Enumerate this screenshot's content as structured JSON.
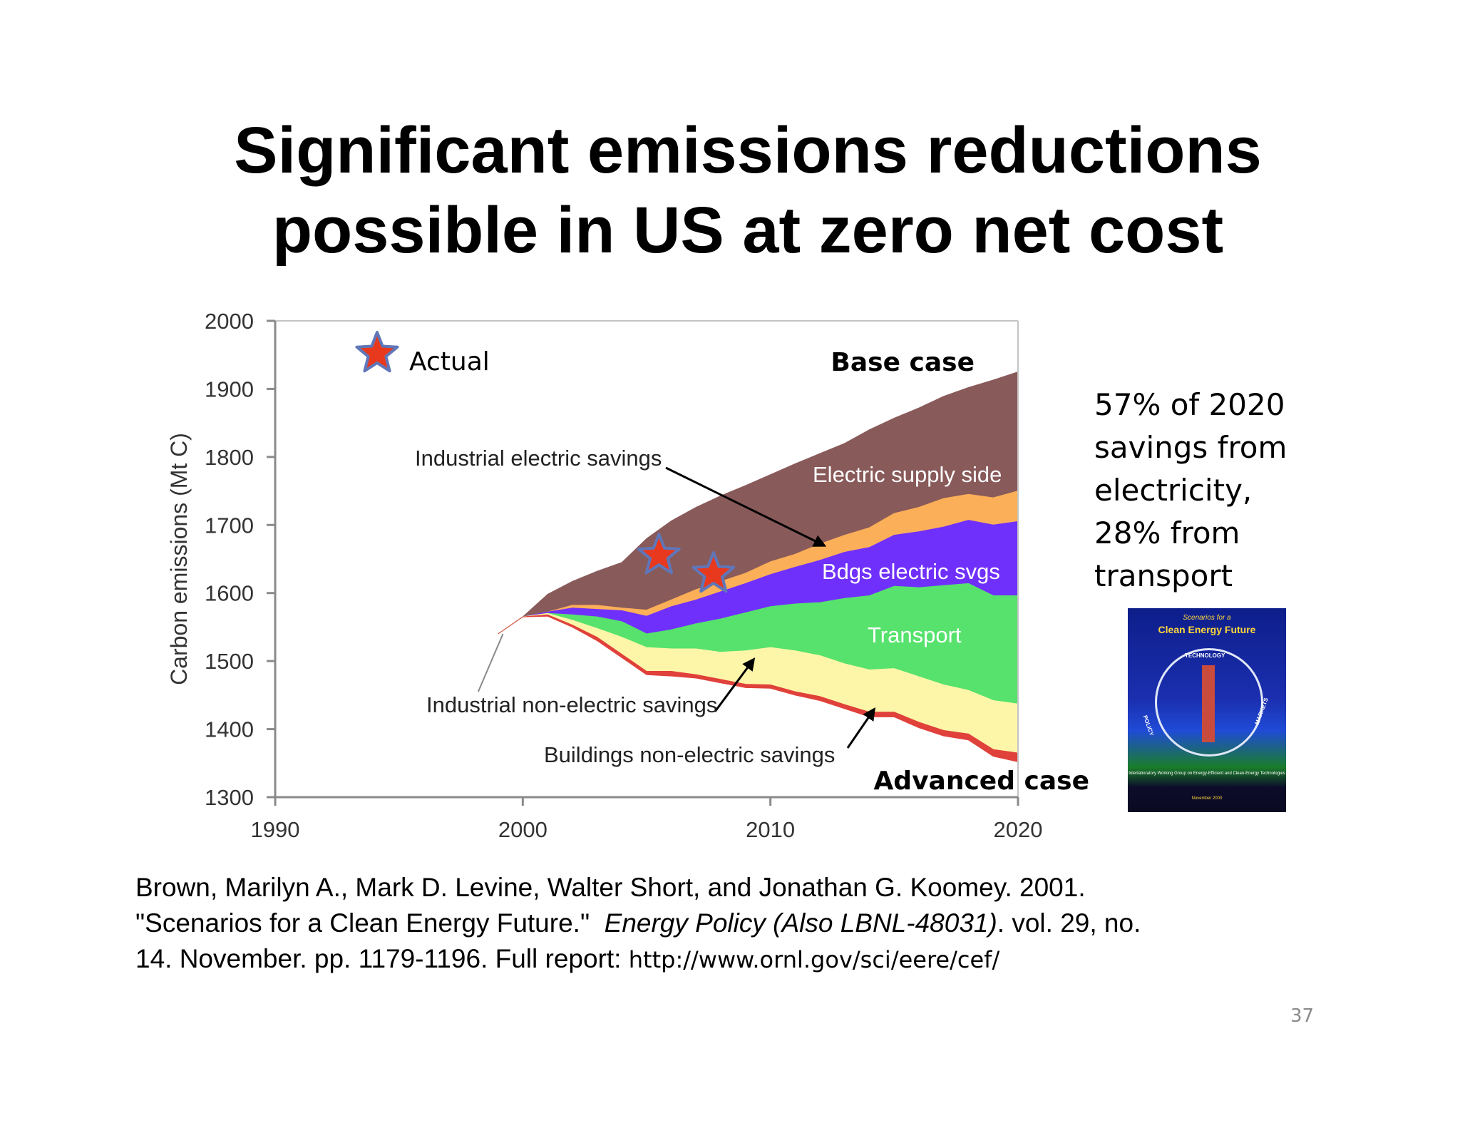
{
  "slide": {
    "title_line1": "Significant emissions reductions",
    "title_line2": "possible in US at zero net cost",
    "side_note": [
      "57% of 2020",
      "savings from",
      "electricity,",
      "28% from",
      "transport"
    ],
    "cover": {
      "subtitle": "Scenarios for a",
      "title": "Clean Energy Future",
      "labels": [
        "TECHNOLOGY",
        "POLICY",
        "MARKETS"
      ],
      "footer": "Interlaboratory Working Group on Energy-Efficient and Clean-Energy Technologies",
      "date": "November 2000"
    },
    "citation_line1": "Brown, Marilyn A., Mark D. Levine, Walter Short, and Jonathan G. Koomey. 2001.",
    "citation_line2_a": "\"Scenarios for a Clean Energy Future.\"",
    "citation_line2_b": "Energy Policy  (Also LBNL-48031)",
    "citation_line2_c": ".  vol. 29, no.",
    "citation_line3": "14. November. pp. 1179-1196. Full report:",
    "citation_url": "http://www.ornl.gov/sci/eere/cef/",
    "page_number": "37"
  },
  "chart_data": {
    "type": "area",
    "ylabel": "Carbon emissions (Mt C)",
    "xlim": [
      1990,
      2020
    ],
    "ylim": [
      1300,
      2000
    ],
    "xticks": [
      1990,
      2000,
      2010,
      2020
    ],
    "yticks": [
      1300,
      1400,
      1500,
      1600,
      1700,
      1800,
      1900,
      2000
    ],
    "x": [
      1999,
      2000,
      2001,
      2002,
      2003,
      2004,
      2005,
      2006,
      2007,
      2008,
      2009,
      2010,
      2011,
      2012,
      2013,
      2014,
      2015,
      2016,
      2017,
      2018,
      2019,
      2020
    ],
    "base_case": [
      1540,
      1565,
      1598,
      1617,
      1632,
      1645,
      1680,
      1706,
      1726,
      1743,
      1758,
      1774,
      1790,
      1805,
      1820,
      1840,
      1857,
      1872,
      1889,
      1902,
      1913,
      1925
    ],
    "boundaries": {
      "electric_supply": [
        1540,
        1565,
        1572,
        1582,
        1582,
        1578,
        1575,
        1590,
        1605,
        1617,
        1629,
        1646,
        1657,
        1672,
        1685,
        1696,
        1717,
        1726,
        1739,
        1745,
        1740,
        1750
      ],
      "bdgs_electric": [
        1540,
        1565,
        1572,
        1578,
        1576,
        1574,
        1566,
        1580,
        1590,
        1602,
        1614,
        1627,
        1638,
        1648,
        1660,
        1667,
        1685,
        1690,
        1697,
        1707,
        1700,
        1705
      ],
      "industrial_electric": [
        1540,
        1565,
        1570,
        1568,
        1565,
        1558,
        1540,
        1546,
        1555,
        1562,
        1571,
        1580,
        1584,
        1586,
        1592,
        1596,
        1610,
        1608,
        1611,
        1614,
        1596,
        1596
      ],
      "transport": [
        1540,
        1565,
        1570,
        1560,
        1548,
        1535,
        1520,
        1518,
        1518,
        1513,
        1515,
        1520,
        1515,
        1508,
        1496,
        1487,
        1489,
        1477,
        1465,
        1457,
        1442,
        1437
      ],
      "industrial_non_electric": [
        1540,
        1565,
        1568,
        1553,
        1535,
        1510,
        1485,
        1485,
        1480,
        1473,
        1466,
        1465,
        1455,
        1448,
        1436,
        1425,
        1425,
        1410,
        1398,
        1393,
        1370,
        1365
      ],
      "advanced_case": [
        1540,
        1565,
        1566,
        1550,
        1530,
        1505,
        1480,
        1478,
        1475,
        1468,
        1461,
        1460,
        1450,
        1442,
        1430,
        1418,
        1418,
        1402,
        1390,
        1384,
        1360,
        1352
      ]
    },
    "series": [
      {
        "name": "Electric supply side",
        "color": "#895a5a",
        "upper": "base_case",
        "lower": "electric_supply"
      },
      {
        "name": "",
        "color": "#fbaf58",
        "upper": "electric_supply",
        "lower": "bdgs_electric"
      },
      {
        "name": "Bdgs electric svgs",
        "color": "#7030fc",
        "upper": "bdgs_electric",
        "lower": "industrial_electric"
      },
      {
        "name": "Transport",
        "color": "#56e26c",
        "upper": "industrial_electric",
        "lower": "transport"
      },
      {
        "name": "",
        "color": "#fdf6a8",
        "upper": "transport",
        "lower": "industrial_non_electric"
      },
      {
        "name": "",
        "color": "#e0413a",
        "upper": "industrial_non_electric",
        "lower": "advanced_case"
      }
    ],
    "actual": [
      {
        "x": 2005.5,
        "y": 1655
      },
      {
        "x": 2007.7,
        "y": 1628
      }
    ],
    "legend_actual": "Actual",
    "labels": {
      "base_case": "Base case",
      "advanced_case": "Advanced case",
      "electric_supply": "Electric supply side",
      "bdgs_electric": "Bdgs electric svgs",
      "transport": "Transport",
      "industrial_electric": "Industrial electric savings",
      "industrial_non_electric": "Industrial non-electric savings",
      "buildings_non_electric": "Buildings non-electric savings"
    },
    "colors": {
      "star": "#e8391f",
      "star_edge": "#5f76b8",
      "axis": "#8a8a8a",
      "plot_border": "#bdbdbd"
    }
  }
}
